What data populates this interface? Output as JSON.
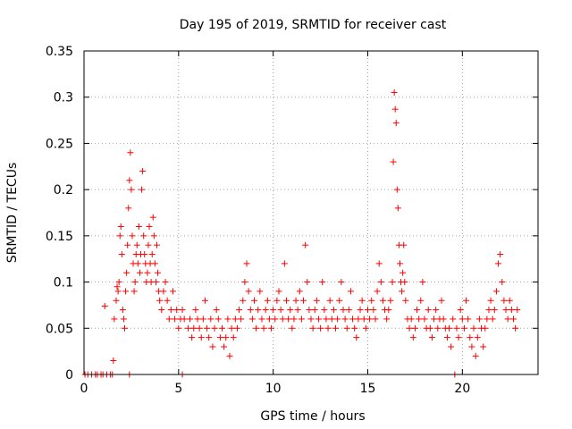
{
  "chart_data": {
    "type": "scatter",
    "title": "Day 195 of 2019, SRMTID for receiver cast",
    "xlabel": "GPS time / hours",
    "ylabel": "SRMTID / TECUs",
    "xlim": [
      0,
      24
    ],
    "ylim": [
      0,
      0.35
    ],
    "xticks": [
      0,
      5,
      10,
      15,
      20
    ],
    "xtick_labels": [
      "0",
      "5",
      "10",
      "15",
      "20"
    ],
    "yticks": [
      0,
      0.05,
      0.1,
      0.15,
      0.2,
      0.25,
      0.3,
      0.35
    ],
    "ytick_labels": [
      "0",
      "0.05",
      "0.1",
      "0.15",
      "0.2",
      "0.25",
      "0.3",
      "0.35"
    ],
    "grid": true,
    "marker": "+",
    "color": "#ff0000",
    "series": [
      {
        "name": "SRMTID",
        "x": [
          0.05,
          0.2,
          0.4,
          0.6,
          0.7,
          0.9,
          1.0,
          1.2,
          1.4,
          1.5,
          2.4,
          5.2,
          19.6,
          1.1,
          1.55,
          1.6,
          1.7,
          1.75,
          1.8,
          1.85,
          1.9,
          1.95,
          2.0,
          2.05,
          2.1,
          2.15,
          2.2,
          2.25,
          2.3,
          2.35,
          2.4,
          2.45,
          2.5,
          2.55,
          2.6,
          2.65,
          2.7,
          2.75,
          2.8,
          2.85,
          2.9,
          2.95,
          3.0,
          3.05,
          3.1,
          3.15,
          3.2,
          3.25,
          3.3,
          3.35,
          3.4,
          3.45,
          3.5,
          3.55,
          3.6,
          3.65,
          3.7,
          3.75,
          3.8,
          3.85,
          3.9,
          3.95,
          4.0,
          4.1,
          4.2,
          4.3,
          4.4,
          4.5,
          4.6,
          4.7,
          4.8,
          4.9,
          5.0,
          5.1,
          5.2,
          5.3,
          5.5,
          5.6,
          5.7,
          5.8,
          5.9,
          6.0,
          6.1,
          6.2,
          6.3,
          6.4,
          6.5,
          6.6,
          6.7,
          6.8,
          6.9,
          7.0,
          7.1,
          7.2,
          7.3,
          7.4,
          7.5,
          7.6,
          7.7,
          7.8,
          7.9,
          8.0,
          8.1,
          8.2,
          8.3,
          8.4,
          8.5,
          8.6,
          8.7,
          8.8,
          8.9,
          9.0,
          9.1,
          9.2,
          9.3,
          9.4,
          9.5,
          9.6,
          9.7,
          9.8,
          9.9,
          10.0,
          10.1,
          10.2,
          10.3,
          10.4,
          10.5,
          10.6,
          10.7,
          10.8,
          10.9,
          11.0,
          11.1,
          11.2,
          11.3,
          11.4,
          11.5,
          11.6,
          11.7,
          11.8,
          11.9,
          12.0,
          12.1,
          12.2,
          12.3,
          12.4,
          12.5,
          12.6,
          12.7,
          12.8,
          12.9,
          13.0,
          13.1,
          13.2,
          13.3,
          13.4,
          13.5,
          13.6,
          13.7,
          13.8,
          13.9,
          14.0,
          14.1,
          14.2,
          14.3,
          14.4,
          14.5,
          14.6,
          14.7,
          14.8,
          14.9,
          15.0,
          15.1,
          15.2,
          15.3,
          15.4,
          15.5,
          15.6,
          15.7,
          15.8,
          15.9,
          16.0,
          16.1,
          16.2,
          16.3,
          16.35,
          16.4,
          16.45,
          16.5,
          16.55,
          16.6,
          16.65,
          16.7,
          16.75,
          16.8,
          16.85,
          16.9,
          16.95,
          17.0,
          17.1,
          17.2,
          17.3,
          17.4,
          17.5,
          17.6,
          17.7,
          17.8,
          17.9,
          18.0,
          18.1,
          18.2,
          18.3,
          18.4,
          18.5,
          18.6,
          18.7,
          18.8,
          18.9,
          19.0,
          19.1,
          19.2,
          19.3,
          19.4,
          19.5,
          19.7,
          19.8,
          19.9,
          20.0,
          20.1,
          20.2,
          20.3,
          20.4,
          20.5,
          20.6,
          20.7,
          20.8,
          20.9,
          21.0,
          21.1,
          21.2,
          21.3,
          21.4,
          21.5,
          21.6,
          21.7,
          21.8,
          21.9,
          22.0,
          22.1,
          22.2,
          22.3,
          22.4,
          22.5,
          22.6,
          22.7,
          22.8,
          22.9
        ],
        "y": [
          0,
          0,
          0,
          0,
          0,
          0,
          0,
          0,
          0,
          0,
          0,
          0,
          0,
          0.074,
          0.015,
          0.06,
          0.08,
          0.095,
          0.09,
          0.1,
          0.15,
          0.16,
          0.13,
          0.07,
          0.06,
          0.05,
          0.09,
          0.11,
          0.14,
          0.18,
          0.21,
          0.24,
          0.2,
          0.15,
          0.12,
          0.09,
          0.1,
          0.13,
          0.14,
          0.12,
          0.16,
          0.11,
          0.13,
          0.2,
          0.22,
          0.15,
          0.13,
          0.12,
          0.1,
          0.11,
          0.14,
          0.16,
          0.12,
          0.1,
          0.13,
          0.17,
          0.15,
          0.12,
          0.1,
          0.14,
          0.11,
          0.09,
          0.08,
          0.07,
          0.09,
          0.1,
          0.08,
          0.06,
          0.07,
          0.09,
          0.06,
          0.07,
          0.05,
          0.06,
          0.07,
          0.06,
          0.05,
          0.06,
          0.04,
          0.05,
          0.07,
          0.06,
          0.05,
          0.04,
          0.06,
          0.08,
          0.05,
          0.04,
          0.06,
          0.03,
          0.05,
          0.07,
          0.06,
          0.04,
          0.05,
          0.03,
          0.04,
          0.06,
          0.02,
          0.05,
          0.04,
          0.06,
          0.05,
          0.07,
          0.06,
          0.08,
          0.1,
          0.12,
          0.09,
          0.07,
          0.06,
          0.08,
          0.05,
          0.07,
          0.09,
          0.06,
          0.05,
          0.07,
          0.08,
          0.06,
          0.05,
          0.07,
          0.06,
          0.08,
          0.09,
          0.07,
          0.06,
          0.12,
          0.08,
          0.06,
          0.07,
          0.05,
          0.06,
          0.08,
          0.07,
          0.09,
          0.06,
          0.08,
          0.14,
          0.1,
          0.07,
          0.06,
          0.05,
          0.07,
          0.08,
          0.06,
          0.05,
          0.1,
          0.07,
          0.06,
          0.05,
          0.08,
          0.06,
          0.07,
          0.05,
          0.06,
          0.08,
          0.1,
          0.07,
          0.06,
          0.05,
          0.07,
          0.09,
          0.06,
          0.05,
          0.04,
          0.06,
          0.07,
          0.08,
          0.06,
          0.05,
          0.07,
          0.06,
          0.08,
          0.07,
          0.06,
          0.09,
          0.12,
          0.1,
          0.08,
          0.07,
          0.06,
          0.07,
          0.08,
          0.1,
          0.23,
          0.305,
          0.287,
          0.272,
          0.2,
          0.18,
          0.14,
          0.12,
          0.1,
          0.09,
          0.11,
          0.14,
          0.1,
          0.08,
          0.06,
          0.05,
          0.06,
          0.04,
          0.05,
          0.07,
          0.06,
          0.08,
          0.1,
          0.06,
          0.05,
          0.07,
          0.05,
          0.04,
          0.06,
          0.07,
          0.05,
          0.06,
          0.08,
          0.06,
          0.05,
          0.04,
          0.05,
          0.03,
          0.06,
          0.05,
          0.04,
          0.07,
          0.06,
          0.05,
          0.08,
          0.06,
          0.04,
          0.03,
          0.05,
          0.02,
          0.04,
          0.06,
          0.05,
          0.03,
          0.05,
          0.06,
          0.07,
          0.08,
          0.06,
          0.07,
          0.09,
          0.12,
          0.13,
          0.1,
          0.08,
          0.07,
          0.06,
          0.08,
          0.07,
          0.06,
          0.05,
          0.07
        ]
      }
    ]
  }
}
